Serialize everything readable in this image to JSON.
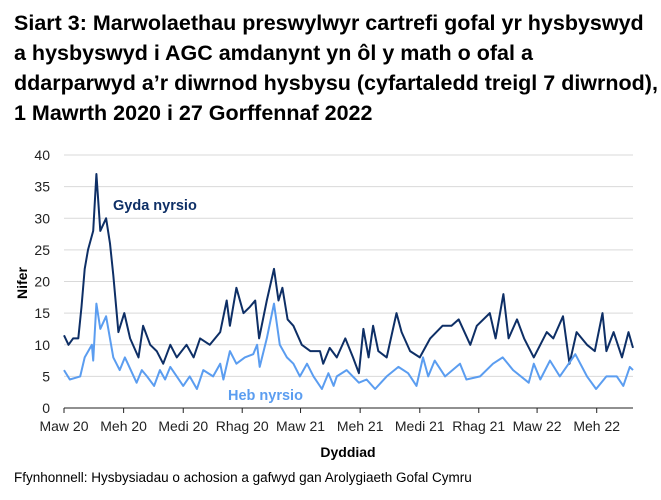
{
  "chart_data": {
    "type": "line",
    "title": "Siart 3: Marwolaethau preswylwyr cartrefi gofal yr hysbyswyd a hysbyswyd i AGC amdanynt yn ôl y math o ofal a ddarparwyd a’r diwrnod hysbysu (cyfartaledd treigl 7 diwrnod), 1 Mawrth 2020 i 27 Gorffennaf 2022",
    "xlabel": "Dyddiad",
    "ylabel": "Nifer",
    "source": "Ffynhonnell: Hysbysiadau o achosion a gafwyd gan Arolygiaeth Gofal Cymru",
    "ylim": [
      0,
      40
    ],
    "yticks": [
      0,
      5,
      10,
      15,
      20,
      25,
      30,
      35,
      40
    ],
    "xlim": [
      "2020-03-01",
      "2022-07-27"
    ],
    "xticks": [
      {
        "date": "2020-03-01",
        "label": "Maw 20"
      },
      {
        "date": "2020-06-01",
        "label": "Meh 20"
      },
      {
        "date": "2020-09-01",
        "label": "Medi 20"
      },
      {
        "date": "2020-12-01",
        "label": "Rhag 20"
      },
      {
        "date": "2021-03-01",
        "label": "Maw 21"
      },
      {
        "date": "2021-06-01",
        "label": "Meh 21"
      },
      {
        "date": "2021-09-01",
        "label": "Medi 21"
      },
      {
        "date": "2021-12-01",
        "label": "Rhag 21"
      },
      {
        "date": "2022-03-01",
        "label": "Maw 22"
      },
      {
        "date": "2022-06-01",
        "label": "Meh 22"
      }
    ],
    "grid": "horizontal",
    "series": [
      {
        "name": "Gyda nyrsio",
        "color": "#0e2f66",
        "points": [
          [
            "2020-03-01",
            11.5
          ],
          [
            "2020-03-08",
            10
          ],
          [
            "2020-03-15",
            11
          ],
          [
            "2020-03-23",
            11
          ],
          [
            "2020-03-28",
            16
          ],
          [
            "2020-04-02",
            22
          ],
          [
            "2020-04-07",
            25
          ],
          [
            "2020-04-15",
            28
          ],
          [
            "2020-04-20",
            37
          ],
          [
            "2020-04-26",
            28
          ],
          [
            "2020-05-05",
            30
          ],
          [
            "2020-05-11",
            26
          ],
          [
            "2020-05-16",
            21
          ],
          [
            "2020-05-24",
            12
          ],
          [
            "2020-06-02",
            15
          ],
          [
            "2020-06-11",
            11
          ],
          [
            "2020-06-24",
            8
          ],
          [
            "2020-07-01",
            13
          ],
          [
            "2020-07-12",
            10
          ],
          [
            "2020-07-22",
            9
          ],
          [
            "2020-08-01",
            7
          ],
          [
            "2020-08-12",
            10
          ],
          [
            "2020-08-22",
            8
          ],
          [
            "2020-09-06",
            10
          ],
          [
            "2020-09-17",
            8
          ],
          [
            "2020-09-27",
            11
          ],
          [
            "2020-10-12",
            10
          ],
          [
            "2020-10-28",
            12
          ],
          [
            "2020-11-07",
            17
          ],
          [
            "2020-11-12",
            13
          ],
          [
            "2020-11-22",
            19
          ],
          [
            "2020-12-03",
            15
          ],
          [
            "2020-12-13",
            16
          ],
          [
            "2020-12-21",
            17
          ],
          [
            "2020-12-27",
            11
          ],
          [
            "2021-01-08",
            17
          ],
          [
            "2021-01-19",
            22
          ],
          [
            "2021-01-26",
            17
          ],
          [
            "2021-02-01",
            19
          ],
          [
            "2021-02-09",
            14
          ],
          [
            "2021-02-18",
            13
          ],
          [
            "2021-03-03",
            10
          ],
          [
            "2021-03-16",
            9
          ],
          [
            "2021-03-31",
            9
          ],
          [
            "2021-04-05",
            7
          ],
          [
            "2021-04-15",
            9.5
          ],
          [
            "2021-04-26",
            8
          ],
          [
            "2021-05-09",
            11
          ],
          [
            "2021-05-21",
            8
          ],
          [
            "2021-05-30",
            5.5
          ],
          [
            "2021-06-06",
            12.5
          ],
          [
            "2021-06-14",
            8
          ],
          [
            "2021-06-21",
            13
          ],
          [
            "2021-06-29",
            9
          ],
          [
            "2021-07-12",
            8
          ],
          [
            "2021-07-27",
            15
          ],
          [
            "2021-08-04",
            12
          ],
          [
            "2021-08-17",
            9
          ],
          [
            "2021-09-01",
            8
          ],
          [
            "2021-09-17",
            11
          ],
          [
            "2021-10-06",
            13
          ],
          [
            "2021-10-20",
            13
          ],
          [
            "2021-10-31",
            14
          ],
          [
            "2021-11-18",
            10
          ],
          [
            "2021-11-28",
            13
          ],
          [
            "2021-12-18",
            15
          ],
          [
            "2021-12-27",
            11
          ],
          [
            "2022-01-08",
            18
          ],
          [
            "2022-01-16",
            11
          ],
          [
            "2022-01-29",
            14
          ],
          [
            "2022-02-09",
            11
          ],
          [
            "2022-02-24",
            8
          ],
          [
            "2022-03-16",
            12
          ],
          [
            "2022-03-26",
            11
          ],
          [
            "2022-04-10",
            14.5
          ],
          [
            "2022-04-20",
            7
          ],
          [
            "2022-05-01",
            12
          ],
          [
            "2022-05-17",
            10
          ],
          [
            "2022-05-29",
            9
          ],
          [
            "2022-06-10",
            15
          ],
          [
            "2022-06-16",
            9
          ],
          [
            "2022-06-27",
            12
          ],
          [
            "2022-07-10",
            8
          ],
          [
            "2022-07-20",
            12
          ],
          [
            "2022-07-27",
            9.5
          ]
        ]
      },
      {
        "name": "Heb nyrsio",
        "color": "#5b9df0",
        "points": [
          [
            "2020-03-01",
            6
          ],
          [
            "2020-03-10",
            4.5
          ],
          [
            "2020-03-26",
            5
          ],
          [
            "2020-04-02",
            8
          ],
          [
            "2020-04-13",
            10
          ],
          [
            "2020-04-15",
            7.5
          ],
          [
            "2020-04-20",
            16.5
          ],
          [
            "2020-04-26",
            12.5
          ],
          [
            "2020-05-05",
            14.5
          ],
          [
            "2020-05-16",
            8
          ],
          [
            "2020-05-26",
            6
          ],
          [
            "2020-06-03",
            8
          ],
          [
            "2020-06-21",
            4
          ],
          [
            "2020-06-29",
            6
          ],
          [
            "2020-07-07",
            5
          ],
          [
            "2020-07-18",
            3.5
          ],
          [
            "2020-07-27",
            6
          ],
          [
            "2020-08-04",
            4.5
          ],
          [
            "2020-08-12",
            6.5
          ],
          [
            "2020-09-01",
            3.5
          ],
          [
            "2020-09-11",
            5
          ],
          [
            "2020-09-22",
            3
          ],
          [
            "2020-10-02",
            6
          ],
          [
            "2020-10-17",
            5
          ],
          [
            "2020-10-28",
            7
          ],
          [
            "2020-11-02",
            4.5
          ],
          [
            "2020-11-12",
            9
          ],
          [
            "2020-11-22",
            7
          ],
          [
            "2020-12-05",
            8
          ],
          [
            "2020-12-18",
            8.5
          ],
          [
            "2020-12-24",
            10
          ],
          [
            "2020-12-28",
            6.5
          ],
          [
            "2021-01-08",
            11
          ],
          [
            "2021-01-19",
            16.5
          ],
          [
            "2021-01-28",
            10
          ],
          [
            "2021-02-08",
            8
          ],
          [
            "2021-02-18",
            7
          ],
          [
            "2021-02-28",
            5
          ],
          [
            "2021-03-11",
            7
          ],
          [
            "2021-03-21",
            5
          ],
          [
            "2021-04-03",
            3
          ],
          [
            "2021-04-13",
            5.5
          ],
          [
            "2021-04-21",
            3.5
          ],
          [
            "2021-04-26",
            5
          ],
          [
            "2021-05-11",
            6
          ],
          [
            "2021-05-30",
            4
          ],
          [
            "2021-06-11",
            4.5
          ],
          [
            "2021-06-24",
            3
          ],
          [
            "2021-07-12",
            5
          ],
          [
            "2021-07-30",
            6.5
          ],
          [
            "2021-08-14",
            5.5
          ],
          [
            "2021-08-27",
            3.5
          ],
          [
            "2021-09-06",
            8
          ],
          [
            "2021-09-14",
            5
          ],
          [
            "2021-09-24",
            7.5
          ],
          [
            "2021-10-10",
            5
          ],
          [
            "2021-11-02",
            7
          ],
          [
            "2021-11-12",
            4.5
          ],
          [
            "2021-12-03",
            5
          ],
          [
            "2021-12-23",
            7
          ],
          [
            "2022-01-07",
            8
          ],
          [
            "2022-01-23",
            6
          ],
          [
            "2022-02-16",
            4
          ],
          [
            "2022-02-24",
            7
          ],
          [
            "2022-03-06",
            4.5
          ],
          [
            "2022-03-21",
            7.5
          ],
          [
            "2022-04-05",
            5
          ],
          [
            "2022-04-29",
            8.5
          ],
          [
            "2022-05-17",
            5
          ],
          [
            "2022-05-31",
            3
          ],
          [
            "2022-06-16",
            5
          ],
          [
            "2022-07-02",
            5
          ],
          [
            "2022-07-12",
            3.5
          ],
          [
            "2022-07-22",
            6.5
          ],
          [
            "2022-07-27",
            6
          ]
        ]
      }
    ]
  }
}
